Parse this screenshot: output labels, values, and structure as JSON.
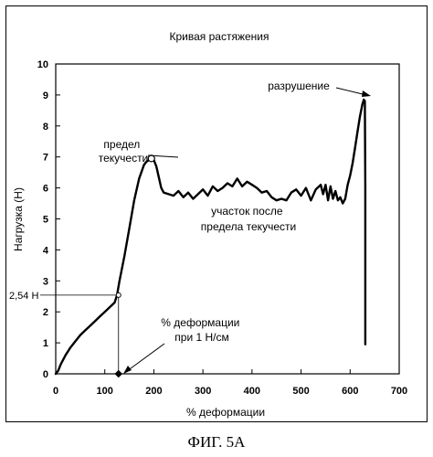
{
  "figure_caption": "ФИГ. 5A",
  "chart_data": {
    "type": "line",
    "title": "Кривая растяжения",
    "xlabel": "% деформации",
    "ylabel": "Нагрузка (Н)",
    "xlim": [
      0,
      700
    ],
    "ylim": [
      0,
      10
    ],
    "x_ticks": [
      "0",
      "100",
      "200",
      "300",
      "400",
      "500",
      "600",
      "700"
    ],
    "y_ticks": [
      "0",
      "1",
      "2",
      "3",
      "4",
      "5",
      "6",
      "7",
      "8",
      "9",
      "10"
    ],
    "grid": false,
    "legend": "none",
    "series": [
      {
        "x": [
          0,
          5,
          10,
          20,
          30,
          40,
          50,
          60,
          70,
          80,
          90,
          100,
          110,
          120,
          125,
          130,
          140,
          150,
          160,
          170,
          180,
          185,
          190,
          195,
          200,
          205,
          210,
          215,
          220,
          230,
          240,
          250,
          260,
          270,
          280,
          290,
          300,
          310,
          320,
          330,
          340,
          350,
          360,
          370,
          380,
          390,
          400,
          410,
          420,
          430,
          440,
          450,
          460,
          470,
          480,
          490,
          500,
          510,
          520,
          530,
          540,
          545,
          550,
          555,
          560,
          565,
          570,
          575,
          580,
          585,
          590,
          595,
          600,
          605,
          610,
          615,
          620,
          625,
          628,
          630,
          631,
          631,
          631
        ],
        "y": [
          0,
          0.1,
          0.3,
          0.6,
          0.85,
          1.05,
          1.25,
          1.4,
          1.55,
          1.7,
          1.85,
          2.0,
          2.15,
          2.3,
          2.54,
          3.0,
          3.8,
          4.7,
          5.6,
          6.3,
          6.75,
          6.85,
          6.9,
          6.95,
          6.9,
          6.7,
          6.35,
          6.0,
          5.85,
          5.8,
          5.75,
          5.9,
          5.7,
          5.85,
          5.65,
          5.8,
          5.95,
          5.75,
          6.05,
          5.9,
          6.0,
          6.15,
          6.05,
          6.3,
          6.05,
          6.2,
          6.1,
          6.0,
          5.85,
          5.9,
          5.7,
          5.6,
          5.65,
          5.6,
          5.85,
          5.95,
          5.75,
          6.0,
          5.6,
          5.95,
          6.1,
          5.8,
          6.1,
          5.6,
          6.05,
          5.65,
          5.9,
          5.6,
          5.7,
          5.5,
          5.65,
          6.1,
          6.4,
          6.8,
          7.3,
          7.8,
          8.3,
          8.7,
          8.85,
          8.8,
          6.0,
          3.0,
          0.95
        ]
      }
    ],
    "annotations": [
      {
        "id": "yield",
        "text_lines": [
          "предел",
          "текучести"
        ]
      },
      {
        "id": "rupture",
        "text_lines": [
          "разрушение"
        ]
      },
      {
        "id": "post_yield",
        "text_lines": [
          "участок после",
          "предела текучести"
        ]
      },
      {
        "id": "deformation_at_1n",
        "text_lines": [
          "% деформации",
          "при 1 Н/см"
        ]
      },
      {
        "id": "ref_load",
        "text": "2,54 Н",
        "x": 128,
        "y": 2.54
      }
    ]
  }
}
